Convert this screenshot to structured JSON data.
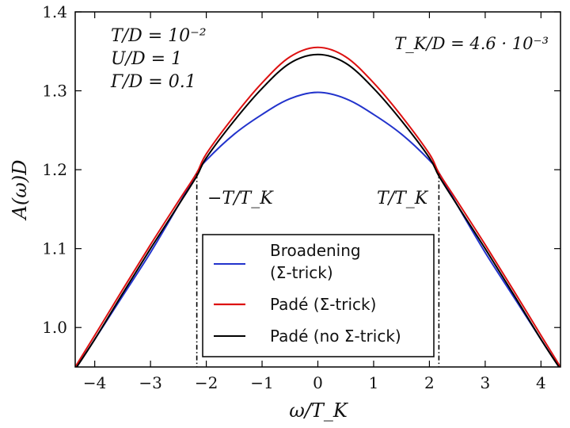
{
  "chart_data": {
    "type": "line",
    "xlabel": "ω/T_K",
    "ylabel": "A(ω)D",
    "xlim": [
      -4.35,
      4.35
    ],
    "ylim": [
      0.95,
      1.4
    ],
    "xticks": [
      -4,
      -3,
      -2,
      -1,
      0,
      1,
      2,
      3,
      4
    ],
    "xtick_labels": [
      "−4",
      "−3",
      "−2",
      "−1",
      "0",
      "1",
      "2",
      "3",
      "4"
    ],
    "yticks": [
      1.0,
      1.1,
      1.2,
      1.3,
      1.4
    ],
    "ytick_labels": [
      "1.0",
      "1.1",
      "1.2",
      "1.3",
      "1.4"
    ],
    "params": {
      "line1": "T/D = 10⁻²",
      "line2": "U/D = 1",
      "line3": "Γ/D = 0.1"
    },
    "tk_annotation": "T_K/D = 4.6 · 10⁻³",
    "markers": {
      "left_label": "−T/T_K",
      "right_label": "T/T_K",
      "left_x": -2.17,
      "right_x": 2.17
    },
    "legend": {
      "position": "lower-center",
      "entries": [
        {
          "line1": "Broadening",
          "line2": "(Σ-trick)",
          "color": "#2233cc"
        },
        {
          "line1": "Padé (Σ-trick)",
          "line2": "",
          "color": "#dd1111"
        },
        {
          "line1": "Padé (no Σ-trick)",
          "line2": "",
          "color": "#000000"
        }
      ]
    },
    "series": [
      {
        "name": "Broadening (Σ-trick)",
        "color": "#2233cc",
        "x": [
          -4.35,
          -4.0,
          -3.5,
          -3.0,
          -2.5,
          -2.17,
          -2.0,
          -1.5,
          -1.0,
          -0.5,
          0.0,
          0.5,
          1.0,
          1.5,
          2.0,
          2.17,
          2.5,
          3.0,
          3.5,
          4.0,
          4.35
        ],
        "y": [
          0.947,
          0.985,
          1.04,
          1.095,
          1.155,
          1.196,
          1.212,
          1.245,
          1.27,
          1.29,
          1.298,
          1.29,
          1.27,
          1.245,
          1.212,
          1.196,
          1.155,
          1.095,
          1.04,
          0.985,
          0.947
        ]
      },
      {
        "name": "Padé (Σ-trick)",
        "color": "#dd1111",
        "x": [
          -4.35,
          -4.0,
          -3.5,
          -3.0,
          -2.5,
          -2.17,
          -2.0,
          -1.5,
          -1.0,
          -0.5,
          0.0,
          0.5,
          1.0,
          1.5,
          2.0,
          2.17,
          2.5,
          3.0,
          3.5,
          4.0,
          4.35
        ],
        "y": [
          0.95,
          0.99,
          1.048,
          1.105,
          1.16,
          1.196,
          1.22,
          1.268,
          1.31,
          1.343,
          1.355,
          1.343,
          1.31,
          1.268,
          1.22,
          1.196,
          1.16,
          1.105,
          1.048,
          0.99,
          0.95
        ]
      },
      {
        "name": "Padé (no Σ-trick)",
        "color": "#000000",
        "x": [
          -4.35,
          -4.0,
          -3.5,
          -3.0,
          -2.5,
          -2.17,
          -2.0,
          -1.5,
          -1.0,
          -0.5,
          0.0,
          0.5,
          1.0,
          1.5,
          2.0,
          2.17,
          2.5,
          3.0,
          3.5,
          4.0,
          4.35
        ],
        "y": [
          0.947,
          0.985,
          1.043,
          1.1,
          1.155,
          1.192,
          1.215,
          1.262,
          1.303,
          1.335,
          1.346,
          1.335,
          1.303,
          1.262,
          1.215,
          1.192,
          1.155,
          1.1,
          1.043,
          0.985,
          0.947
        ]
      }
    ]
  }
}
